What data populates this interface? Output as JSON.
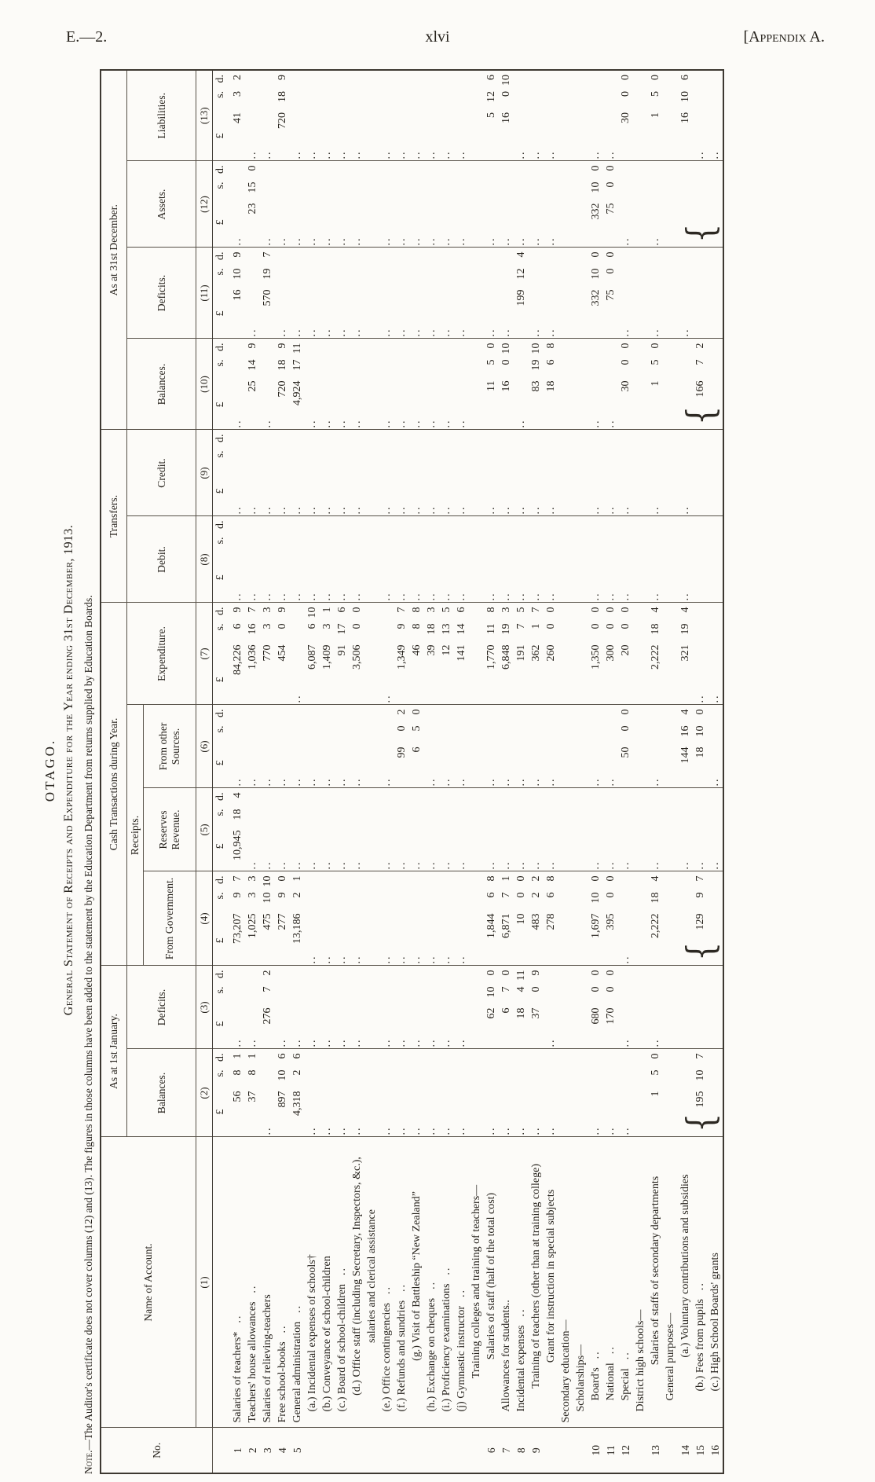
{
  "page_header": {
    "left": "E.—2.",
    "center": "xlvi",
    "right": "[Appendix A."
  },
  "title": {
    "main": "OTAGO.",
    "statement": "General Statement of Receipts and Expenditure for the Year ending 31st December, 1913.",
    "note_label": "Note",
    "note_text": ".—The Auditor's certificate does not cover columns (12) and (13).  The figures in those columns have been added to the statement by the Education Department from returns supplied by Education Boards."
  },
  "table": {
    "groups": {
      "jan": "As at 1st January.",
      "cash": "Cash Transactions during Year.",
      "receipts": "Receipts.",
      "transfers": "Transfers.",
      "dec": "As at 31st December."
    },
    "columns": {
      "no": "No.",
      "name": "Name of Account.",
      "c2": "Balances.",
      "c3": "Deficits.",
      "c4": "From Government.",
      "c5": "Reserves Revenue.",
      "c6": "From other Sources.",
      "c7": "Expenditure.",
      "c8": "Debit.",
      "c9": "Credit.",
      "c10": "Balances.",
      "c11": "Deficits.",
      "c12": "Assets.",
      "c13": "Liabilities."
    },
    "colnums": {
      "name": "(1)",
      "c2": "(2)",
      "c3": "(3)",
      "c4": "(4)",
      "c5": "(5)",
      "c6": "(6)",
      "c7": "(7)",
      "c8": "(8)",
      "c9": "(9)",
      "c10": "(10)",
      "c11": "(11)",
      "c12": "(12)",
      "c13": "(13)"
    },
    "money_header": {
      "pound": "£",
      "s": "s.",
      "d": "d."
    },
    "braced_rows_14_16": {
      "c2": "195 10 7",
      "c4": "129 9 7",
      "c10": "166 7 2",
      "c12": ""
    },
    "rows": [
      {
        "id": "r1",
        "no": "1",
        "name": "Salaries of teachers*",
        "leader": true,
        "v": [
          "56 8 1",
          "..",
          "73,207 9 7",
          "10,945 18 4",
          "..",
          "84,226 6 9",
          "..",
          "..",
          "..",
          "16 10 9",
          "..",
          "41 3 2"
        ]
      },
      {
        "id": "r2",
        "no": "2",
        "name": "Teachers' house allowances",
        "leader": true,
        "v": [
          "37 8 1",
          "..",
          "1,025 3 3",
          "..",
          "..",
          "1,036 16 7",
          "..",
          "..",
          "25 14 9",
          "..",
          "23 15 0",
          ".."
        ]
      },
      {
        "id": "r3",
        "no": "3",
        "name": "Salaries of relieving-teachers",
        "v": [
          "..",
          "276 7 2",
          "475 10 10",
          "..",
          "..",
          "770 3 3",
          "..",
          "..",
          "..",
          "570 19 7",
          "..",
          ".."
        ]
      },
      {
        "id": "r4",
        "no": "4",
        "name": "Free school-books",
        "leader": true,
        "v": [
          "897 10 6",
          "..",
          "277 9 0",
          "..",
          "..",
          "454 0 9",
          "..",
          "..",
          "720 18 9",
          "..",
          "..",
          "720 18 9"
        ]
      },
      {
        "id": "r5",
        "no": "5",
        "name": "General administration",
        "leader": true,
        "v": [
          "4,318 2 6",
          "..",
          "13,186 2 1",
          "..",
          "..",
          "..",
          "..",
          "..",
          "4,924 17 11",
          "..",
          "..",
          ".."
        ]
      },
      {
        "id": "sa",
        "ind": 1,
        "name": "(a.) Incidental expenses of schools†",
        "v": [
          "..",
          "..",
          "..",
          "..",
          "..",
          "6,087 6 10",
          "..",
          "..",
          "..",
          "..",
          "..",
          ".."
        ]
      },
      {
        "id": "sb",
        "ind": 1,
        "name": "(b.) Conveyance of school-children",
        "v": [
          "..",
          "..",
          "..",
          "..",
          "..",
          "1,409 3 1",
          "..",
          "..",
          "..",
          "..",
          "..",
          ".."
        ]
      },
      {
        "id": "sc",
        "ind": 1,
        "name": "(c.) Board of school-children",
        "leader": true,
        "v": [
          "..",
          "..",
          "..",
          "..",
          "..",
          "91 17 6",
          "..",
          "..",
          "..",
          "..",
          "..",
          ".."
        ]
      },
      {
        "id": "sd",
        "ind": 1,
        "ctr": true,
        "name": "(d.) Office staff (including Secretary, Inspectors, &c.), salaries and clerical assistance",
        "v": [
          "..",
          "..",
          "..",
          "..",
          "..",
          "3,506 0 0",
          "..",
          "..",
          "..",
          "..",
          "..",
          ".."
        ]
      },
      {
        "id": "se",
        "ind": 1,
        "name": "(e.) Office contingencies",
        "leader": true,
        "v": [
          "..",
          "..",
          "..",
          "..",
          "..",
          "..",
          "..",
          "..",
          "..",
          "..",
          "..",
          ".."
        ]
      },
      {
        "id": "sf",
        "ind": 1,
        "name": "(f.) Refunds and sundries",
        "leader": true,
        "v": [
          "..",
          "..",
          "..",
          "..",
          "99 0 2",
          "1,349 9 7",
          "..",
          "..",
          "..",
          "..",
          "..",
          ".."
        ]
      },
      {
        "id": "sg",
        "ind": 1,
        "ctr": true,
        "name": "(g.) Visit of Battleship “New Zealand”",
        "v": [
          "..",
          "..",
          "..",
          "..",
          "6 5 0",
          "46 8 8",
          "..",
          "..",
          "..",
          "..",
          "..",
          ".."
        ]
      },
      {
        "id": "sh",
        "ind": 1,
        "name": "(h.) Exchange on cheques",
        "leader": true,
        "v": [
          "..",
          "..",
          "..",
          "..",
          "..",
          "39 18 3",
          "..",
          "..",
          "..",
          "..",
          "..",
          ".."
        ]
      },
      {
        "id": "si",
        "ind": 1,
        "name": "(i.) Proficiency examinations",
        "leader": true,
        "v": [
          "..",
          "..",
          "..",
          "..",
          "..",
          "12 13 5",
          "..",
          "..",
          "..",
          "..",
          "..",
          ".."
        ]
      },
      {
        "id": "sj",
        "ind": 1,
        "name": "(j) Gymnastic instructor",
        "leader": true,
        "v": [
          "..",
          "..",
          "..",
          "..",
          "..",
          "141 14 6",
          "..",
          "..",
          "..",
          "..",
          "..",
          ".."
        ]
      },
      {
        "id": "hTrain",
        "hdr": true,
        "ctr": true,
        "name": "Training colleges and training of teachers—",
        "v": null
      },
      {
        "id": "r6",
        "no": "6",
        "ind": 1,
        "ctr": true,
        "name": "Salaries of staff (half of the total cost)",
        "v": [
          "..",
          "62 10 0",
          "1,844 6 8",
          "..",
          "..",
          "1,770 11 8",
          "..",
          "..",
          "11 5 0",
          "..",
          "..",
          "5 12 6"
        ]
      },
      {
        "id": "r7",
        "no": "7",
        "ind": 1,
        "name": "Allowances for students..",
        "v": [
          "..",
          "6 7 0",
          "6,871 7 1",
          "..",
          "..",
          "6,848 19 3",
          "..",
          "..",
          "16 0 10",
          "..",
          "..",
          "16 0 10"
        ]
      },
      {
        "id": "r8",
        "no": "8",
        "ind": 1,
        "name": "Incidental expenses",
        "leader": true,
        "v": [
          "..",
          "18 4 11",
          "10 0 0",
          "..",
          "..",
          "191 7 5",
          "..",
          "..",
          "..",
          "199 12 4",
          "..",
          ".."
        ]
      },
      {
        "id": "r9",
        "no": "9",
        "ind": 1,
        "ctr": true,
        "name": "Training of teachers (other than at training college)",
        "v": [
          "..",
          "37 0 9",
          "483 2 2",
          "..",
          "..",
          "362 1 7",
          "..",
          "..",
          "83 19 10",
          "..",
          "..",
          ".."
        ]
      },
      {
        "id": "grant",
        "ind": 1,
        "ctr": true,
        "name": "Grant for instruction in special subjects",
        "v": [
          "..",
          "..",
          "278 6 8",
          "..",
          "..",
          "260 0 0",
          "..",
          "..",
          "18 6 8",
          "..",
          "..",
          ".."
        ]
      },
      {
        "id": "hSec",
        "hdr": true,
        "name": "Secondary education—",
        "v": null
      },
      {
        "id": "hSch",
        "hdr": true,
        "ind": 1,
        "name": "Scholarships—",
        "v": null
      },
      {
        "id": "r10",
        "no": "10",
        "ind": 2,
        "name": "Board's",
        "leader": true,
        "v": [
          "..",
          "680 0 0",
          "1,697 10 0",
          "..",
          "..",
          "1,350 0 0",
          "..",
          "..",
          "..",
          "332 10 0",
          "332 10 0",
          ".."
        ]
      },
      {
        "id": "r11",
        "no": "11",
        "ind": 2,
        "name": "National",
        "leader": true,
        "v": [
          "..",
          "170 0 0",
          "395 0 0",
          "..",
          "..",
          "300 0 0",
          "..",
          "..",
          "..",
          "75 0 0",
          "75 0 0",
          ".."
        ]
      },
      {
        "id": "r12",
        "no": "12",
        "ind": 2,
        "name": "Special",
        "leader": true,
        "v": [
          "..",
          "..",
          "..",
          "..",
          "50 0 0",
          "20 0 0",
          "..",
          "..",
          "30 0 0",
          "..",
          "..",
          "30 0 0"
        ]
      },
      {
        "id": "hDist",
        "hdr": true,
        "ind": 1,
        "name": "District high schools—",
        "v": null
      },
      {
        "id": "r13",
        "no": "13",
        "ind": 2,
        "ctr": true,
        "name": "Salaries of staffs of secondary departments",
        "v": [
          "1 5 0",
          "..",
          "2,222 18 4",
          "..",
          "..",
          "2,222 18 4",
          "..",
          "..",
          "1 5 0",
          "..",
          "..",
          "1 5 0"
        ]
      },
      {
        "id": "hGen",
        "hdr": true,
        "ind": 2,
        "name": "General purposes—",
        "v": null
      },
      {
        "id": "r14",
        "no": "14",
        "ind": 3,
        "ctr": true,
        "name": "(a.) Voluntary contributions and subsidies",
        "v": [
          "",
          "",
          "",
          "..",
          "144 16 4",
          "321 19 4",
          "..",
          "..",
          "",
          "..",
          "",
          "16 10 6"
        ]
      },
      {
        "id": "r15",
        "no": "15",
        "ind": 3,
        "name": "(b.) Fees from pupils",
        "leader": true,
        "v": [
          "",
          "",
          "",
          "..",
          "18 10 0",
          "..",
          "",
          "",
          "",
          "",
          "",
          ".."
        ]
      },
      {
        "id": "r16",
        "no": "16",
        "ind": 3,
        "name": "(c.) High School Boards' grants",
        "v": [
          "",
          "",
          "",
          "..",
          "..",
          "..",
          "",
          "",
          "",
          "",
          "",
          ".."
        ]
      }
    ]
  }
}
